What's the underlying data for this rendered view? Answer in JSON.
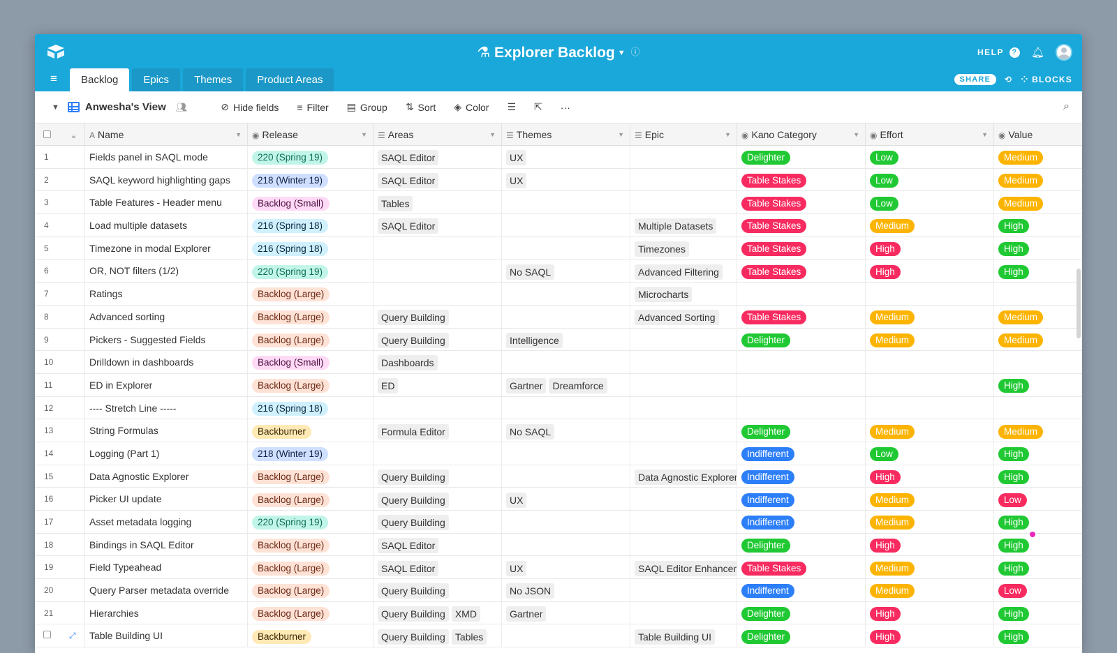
{
  "app": {
    "title": "Explorer Backlog",
    "help_label": "HELP",
    "share_label": "SHARE",
    "blocks_label": "BLOCKS"
  },
  "tabs": [
    {
      "label": "Backlog",
      "active": true
    },
    {
      "label": "Epics",
      "active": false
    },
    {
      "label": "Themes",
      "active": false
    },
    {
      "label": "Product Areas",
      "active": false
    }
  ],
  "toolbar": {
    "view_name": "Anwesha's View",
    "hide_fields": "Hide fields",
    "filter": "Filter",
    "group": "Group",
    "sort": "Sort",
    "color": "Color",
    "more": "···"
  },
  "columns": [
    "Name",
    "Release",
    "Areas",
    "Themes",
    "Epic",
    "Kano Category",
    "Effort",
    "Value"
  ],
  "colors": {
    "topbar": "#1aa7d9",
    "delighter": "#20c933",
    "table_stakes": "#f82b60",
    "indifferent": "#2d7ff9",
    "low_green": "#20c933",
    "high_red": "#f82b60",
    "medium_orange": "#fcb400",
    "high_green": "#20c933",
    "low_red": "#f82b60"
  },
  "rows": [
    {
      "n": "1",
      "name": "Fields panel in SAQL mode",
      "release": "220 (Spring 19)",
      "areas": [
        "SAQL Editor"
      ],
      "themes": [
        "UX"
      ],
      "epic": [],
      "kano": "Delighter",
      "effort": "Low",
      "value": "Medium"
    },
    {
      "n": "2",
      "name": "SAQL keyword highlighting gaps",
      "release": "218 (Winter 19)",
      "areas": [
        "SAQL Editor"
      ],
      "themes": [
        "UX"
      ],
      "epic": [],
      "kano": "Table Stakes",
      "effort": "Low",
      "value": "Medium"
    },
    {
      "n": "3",
      "name": "Table Features - Header menu",
      "release": "Backlog (Small)",
      "areas": [
        "Tables"
      ],
      "themes": [],
      "epic": [],
      "kano": "Table Stakes",
      "effort": "Low",
      "value": "Medium"
    },
    {
      "n": "4",
      "name": "Load multiple datasets",
      "release": "216 (Spring 18)",
      "areas": [
        "SAQL Editor"
      ],
      "themes": [],
      "epic": [
        "Multiple Datasets"
      ],
      "kano": "Table Stakes",
      "effort": "Medium",
      "value": "High"
    },
    {
      "n": "5",
      "name": "Timezone in modal Explorer",
      "release": "216 (Spring 18)",
      "areas": [],
      "themes": [],
      "epic": [
        "Timezones"
      ],
      "kano": "Table Stakes",
      "effort": "High",
      "value": "High"
    },
    {
      "n": "6",
      "name": "OR, NOT filters (1/2)",
      "release": "220 (Spring 19)",
      "areas": [],
      "themes": [
        "No SAQL"
      ],
      "epic": [
        "Advanced Filtering"
      ],
      "kano": "Table Stakes",
      "effort": "High",
      "value": "High"
    },
    {
      "n": "7",
      "name": "Ratings",
      "release": "Backlog (Large)",
      "areas": [],
      "themes": [],
      "epic": [
        "Microcharts"
      ],
      "kano": "",
      "effort": "",
      "value": ""
    },
    {
      "n": "8",
      "name": "Advanced sorting",
      "release": "Backlog (Large)",
      "areas": [
        "Query Building"
      ],
      "themes": [],
      "epic": [
        "Advanced Sorting"
      ],
      "kano": "Table Stakes",
      "effort": "Medium",
      "value": "Medium"
    },
    {
      "n": "9",
      "name": "Pickers - Suggested Fields",
      "release": "Backlog (Large)",
      "areas": [
        "Query Building"
      ],
      "themes": [
        "Intelligence"
      ],
      "epic": [],
      "kano": "Delighter",
      "effort": "Medium",
      "value": "Medium"
    },
    {
      "n": "10",
      "name": "Drilldown in dashboards",
      "release": "Backlog (Small)",
      "areas": [
        "Dashboards"
      ],
      "themes": [],
      "epic": [],
      "kano": "",
      "effort": "",
      "value": ""
    },
    {
      "n": "11",
      "name": "ED in Explorer",
      "release": "Backlog (Large)",
      "areas": [
        "ED"
      ],
      "themes": [
        "Gartner",
        "Dreamforce"
      ],
      "epic": [],
      "kano": "",
      "effort": "",
      "value": "High"
    },
    {
      "n": "12",
      "name": "---- Stretch Line -----",
      "release": "216 (Spring 18)",
      "areas": [],
      "themes": [],
      "epic": [],
      "kano": "",
      "effort": "",
      "value": ""
    },
    {
      "n": "13",
      "name": "String Formulas",
      "release": "Backburner",
      "areas": [
        "Formula Editor"
      ],
      "themes": [
        "No SAQL"
      ],
      "epic": [],
      "kano": "Delighter",
      "effort": "Medium",
      "value": "Medium"
    },
    {
      "n": "14",
      "name": "Logging (Part 1)",
      "release": "218 (Winter 19)",
      "areas": [],
      "themes": [],
      "epic": [],
      "kano": "Indifferent",
      "effort": "Low",
      "value": "High"
    },
    {
      "n": "15",
      "name": "Data Agnostic Explorer",
      "release": "Backlog (Large)",
      "areas": [
        "Query Building"
      ],
      "themes": [],
      "epic": [
        "Data Agnostic Explorer"
      ],
      "kano": "Indifferent",
      "effort": "High",
      "value": "High"
    },
    {
      "n": "16",
      "name": "Picker UI update",
      "release": "Backlog (Large)",
      "areas": [
        "Query Building"
      ],
      "themes": [
        "UX"
      ],
      "epic": [],
      "kano": "Indifferent",
      "effort": "Medium",
      "value": "Low"
    },
    {
      "n": "17",
      "name": "Asset metadata logging",
      "release": "220 (Spring 19)",
      "areas": [
        "Query Building"
      ],
      "themes": [],
      "epic": [],
      "kano": "Indifferent",
      "effort": "Medium",
      "value": "High"
    },
    {
      "n": "18",
      "name": "Bindings in SAQL Editor",
      "release": "Backlog (Large)",
      "areas": [
        "SAQL Editor"
      ],
      "themes": [],
      "epic": [],
      "kano": "Delighter",
      "effort": "High",
      "value": "High"
    },
    {
      "n": "19",
      "name": "Field Typeahead",
      "release": "Backlog (Large)",
      "areas": [
        "SAQL Editor"
      ],
      "themes": [
        "UX"
      ],
      "epic": [
        "SAQL Editor Enhancements"
      ],
      "kano": "Table Stakes",
      "effort": "Medium",
      "value": "High"
    },
    {
      "n": "20",
      "name": "Query Parser metadata override",
      "release": "Backlog (Large)",
      "areas": [
        "Query Building"
      ],
      "themes": [
        "No JSON"
      ],
      "epic": [],
      "kano": "Indifferent",
      "effort": "Medium",
      "value": "Low"
    },
    {
      "n": "21",
      "name": "Hierarchies",
      "release": "Backlog (Large)",
      "areas": [
        "Query Building",
        "XMD"
      ],
      "themes": [
        "Gartner"
      ],
      "epic": [],
      "kano": "Delighter",
      "effort": "High",
      "value": "High"
    },
    {
      "n": "",
      "name": "Table Building UI",
      "release": "Backburner",
      "areas": [
        "Query Building",
        "Tables"
      ],
      "themes": [],
      "epic": [
        "Table Building UI"
      ],
      "kano": "Delighter",
      "effort": "High",
      "value": "High"
    }
  ]
}
